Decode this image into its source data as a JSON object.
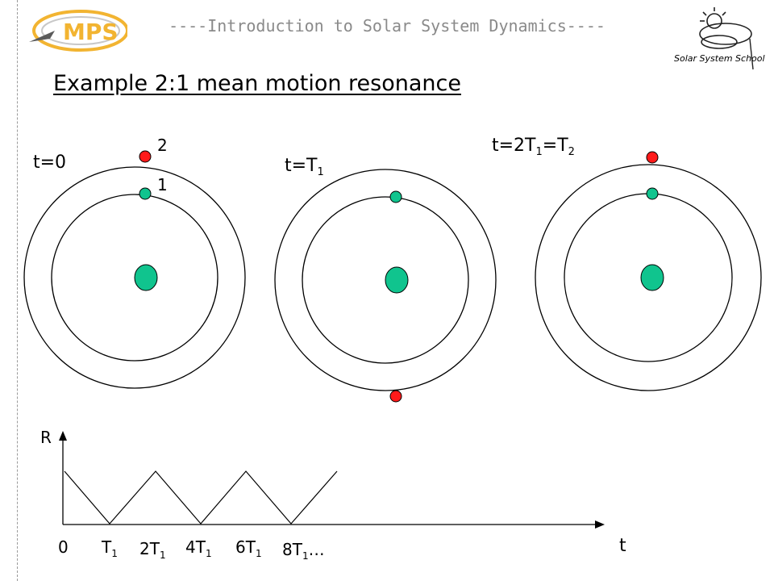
{
  "header": {
    "text": "----Introduction to Solar System Dynamics----"
  },
  "logos": {
    "mps": "MPS",
    "school": "Solar System School"
  },
  "title": "Example 2:1 mean motion resonance",
  "colors": {
    "planet": "#10c48e",
    "outer_body": "#ff1a1a",
    "header": "#8a8a8a",
    "mps_gold": "#f2b431"
  },
  "panels": [
    {
      "label": "t=0",
      "label_1": "1",
      "label_2": "2"
    },
    {
      "label_main": "t=T",
      "label_sub": "1"
    },
    {
      "label_a": "t=2T",
      "label_a_sub": "1",
      "label_b": "=T",
      "label_b_sub": "2"
    }
  ],
  "graph": {
    "ylabel": "R",
    "xlabel": "t",
    "ticks": [
      {
        "main": "0",
        "sub": ""
      },
      {
        "main": "T",
        "sub": "1"
      },
      {
        "main": "2T",
        "sub": "1"
      },
      {
        "main": "4T",
        "sub": "1"
      },
      {
        "main": "6T",
        "sub": "1"
      },
      {
        "main": "8T",
        "sub": "1",
        "suffix": "…"
      }
    ]
  }
}
